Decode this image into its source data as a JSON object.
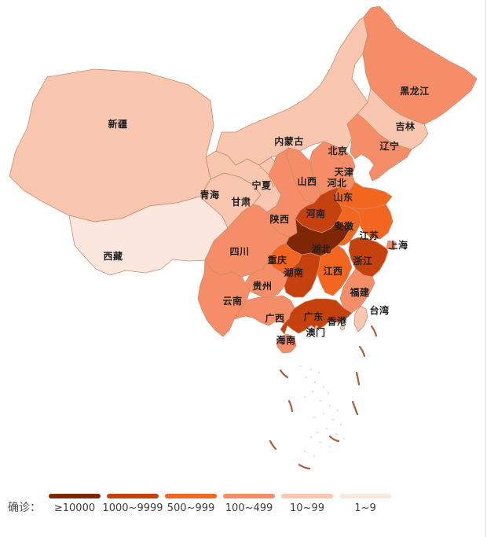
{
  "legend": {
    "title": "确诊：",
    "items": [
      {
        "label": "≥10000",
        "color": "#7f2704"
      },
      {
        "label": "1000~9999",
        "color": "#c5420e"
      },
      {
        "label": "500~999",
        "color": "#f2661f"
      },
      {
        "label": "100~499",
        "color": "#f58d68"
      },
      {
        "label": "10~99",
        "color": "#f9c6b0"
      },
      {
        "label": "1~9",
        "color": "#fbe7de"
      }
    ]
  },
  "map": {
    "label_color": "#1f1f1f",
    "border_color": "#cf8a68",
    "dash_line_color": "#b05a38",
    "island_color": "#c9c9c9",
    "provinces": [
      {
        "id": "xinjiang",
        "name": "新疆",
        "level": 4
      },
      {
        "id": "xizang",
        "name": "西藏",
        "level": 5
      },
      {
        "id": "qinghai",
        "name": "青海",
        "level": 4
      },
      {
        "id": "gansu",
        "name": "甘肃",
        "level": 4
      },
      {
        "id": "neimenggu",
        "name": "内蒙古",
        "level": 4
      },
      {
        "id": "ningxia",
        "name": "宁夏",
        "level": 4
      },
      {
        "id": "heilongjiang",
        "name": "黑龙江",
        "level": 3
      },
      {
        "id": "jilin",
        "name": "吉林",
        "level": 4
      },
      {
        "id": "liaoning",
        "name": "辽宁",
        "level": 3
      },
      {
        "id": "hebei",
        "name": "河北",
        "level": 3
      },
      {
        "id": "beijing",
        "name": "北京",
        "level": 3
      },
      {
        "id": "tianjin",
        "name": "天津",
        "level": 3
      },
      {
        "id": "shanxi",
        "name": "山西",
        "level": 3
      },
      {
        "id": "shandong",
        "name": "山东",
        "level": 2
      },
      {
        "id": "shaanxi",
        "name": "陕西",
        "level": 3
      },
      {
        "id": "henan",
        "name": "河南",
        "level": 1
      },
      {
        "id": "jiangsu",
        "name": "江苏",
        "level": 2
      },
      {
        "id": "anhui",
        "name": "安徽",
        "level": 2
      },
      {
        "id": "hubei",
        "name": "湖北",
        "level": 0
      },
      {
        "id": "chongqing",
        "name": "重庆",
        "level": 2
      },
      {
        "id": "sichuan",
        "name": "四川",
        "level": 3
      },
      {
        "id": "guizhou",
        "name": "贵州",
        "level": 3
      },
      {
        "id": "yunnan",
        "name": "云南",
        "level": 3
      },
      {
        "id": "hunan",
        "name": "湖南",
        "level": 1
      },
      {
        "id": "jiangxi",
        "name": "江西",
        "level": 2
      },
      {
        "id": "zhejiang",
        "name": "浙江",
        "level": 1
      },
      {
        "id": "shanghai",
        "name": "上海",
        "level": 3
      },
      {
        "id": "fujian",
        "name": "福建",
        "level": 3
      },
      {
        "id": "guangxi",
        "name": "广西",
        "level": 3
      },
      {
        "id": "guangdong",
        "name": "广东",
        "level": 1
      },
      {
        "id": "hongkong",
        "name": "香港",
        "level": 4
      },
      {
        "id": "macau",
        "name": "澳门",
        "level": 4
      },
      {
        "id": "hainan",
        "name": "海南",
        "level": 3
      },
      {
        "id": "taiwan",
        "name": "台湾",
        "level": 4
      }
    ]
  }
}
